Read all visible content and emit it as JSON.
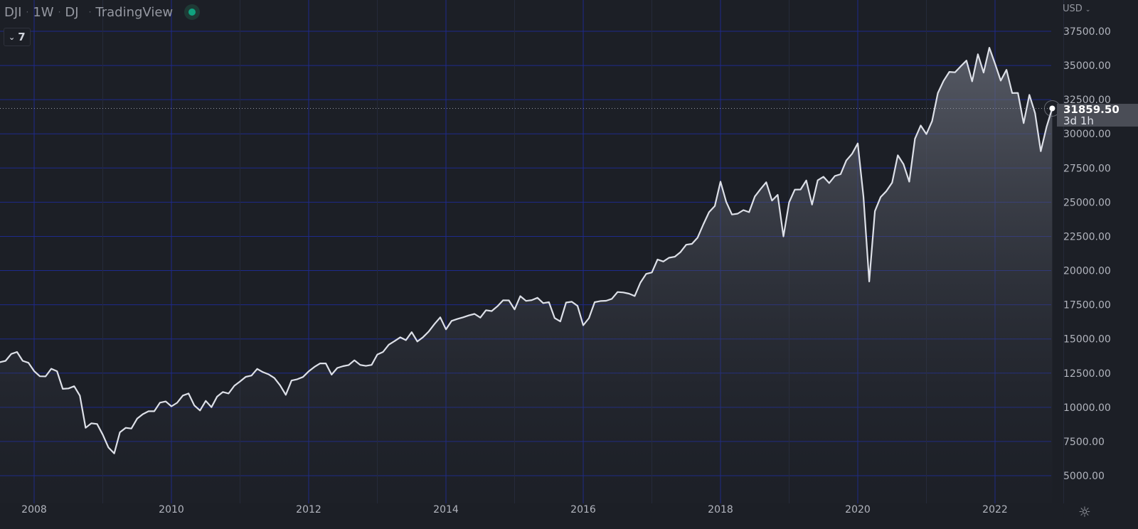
{
  "header": {
    "symbol": "DJI",
    "interval": "1W",
    "exchange": "DJ",
    "source": "TradingView",
    "status_color": "#10a37f"
  },
  "indicators_toggle": {
    "count": "7"
  },
  "price_axis": {
    "currency": "USD"
  },
  "last_price": {
    "value": "31859.50",
    "countdown": "3d 1h"
  },
  "colors": {
    "background": "#1c1f26",
    "grid": "#1e2a8c",
    "line": "#d1d4dc"
  },
  "chart_data": {
    "type": "area",
    "title": "",
    "xlabel": "",
    "ylabel": "",
    "ylim": [
      5000,
      37500
    ],
    "xlim": [
      "2007-07",
      "2022-11"
    ],
    "grid": true,
    "y_ticks": [
      "37500.00",
      "35000.00",
      "32500.00",
      "30000.00",
      "27500.00",
      "25000.00",
      "22500.00",
      "20000.00",
      "17500.00",
      "15000.00",
      "12500.00",
      "10000.00",
      "7500.00",
      "5000.00"
    ],
    "x_ticks": [
      "2008",
      "2010",
      "2012",
      "2014",
      "2016",
      "2018",
      "2020",
      "2022"
    ],
    "x": [
      "2007-07",
      "2007-08",
      "2007-09",
      "2007-10",
      "2007-11",
      "2007-12",
      "2008-01",
      "2008-02",
      "2008-03",
      "2008-04",
      "2008-05",
      "2008-06",
      "2008-07",
      "2008-08",
      "2008-09",
      "2008-10",
      "2008-11",
      "2008-12",
      "2009-01",
      "2009-02",
      "2009-03",
      "2009-04",
      "2009-05",
      "2009-06",
      "2009-07",
      "2009-08",
      "2009-09",
      "2009-10",
      "2009-11",
      "2009-12",
      "2010-01",
      "2010-02",
      "2010-03",
      "2010-04",
      "2010-05",
      "2010-06",
      "2010-07",
      "2010-08",
      "2010-09",
      "2010-10",
      "2010-11",
      "2010-12",
      "2011-01",
      "2011-02",
      "2011-03",
      "2011-04",
      "2011-05",
      "2011-06",
      "2011-07",
      "2011-08",
      "2011-09",
      "2011-10",
      "2011-11",
      "2011-12",
      "2012-01",
      "2012-02",
      "2012-03",
      "2012-04",
      "2012-05",
      "2012-06",
      "2012-07",
      "2012-08",
      "2012-09",
      "2012-10",
      "2012-11",
      "2012-12",
      "2013-01",
      "2013-02",
      "2013-03",
      "2013-04",
      "2013-05",
      "2013-06",
      "2013-07",
      "2013-08",
      "2013-09",
      "2013-10",
      "2013-11",
      "2013-12",
      "2014-01",
      "2014-02",
      "2014-03",
      "2014-04",
      "2014-05",
      "2014-06",
      "2014-07",
      "2014-08",
      "2014-09",
      "2014-10",
      "2014-11",
      "2014-12",
      "2015-01",
      "2015-02",
      "2015-03",
      "2015-04",
      "2015-05",
      "2015-06",
      "2015-07",
      "2015-08",
      "2015-09",
      "2015-10",
      "2015-11",
      "2015-12",
      "2016-01",
      "2016-02",
      "2016-03",
      "2016-04",
      "2016-05",
      "2016-06",
      "2016-07",
      "2016-08",
      "2016-09",
      "2016-10",
      "2016-11",
      "2016-12",
      "2017-01",
      "2017-02",
      "2017-03",
      "2017-04",
      "2017-05",
      "2017-06",
      "2017-07",
      "2017-08",
      "2017-09",
      "2017-10",
      "2017-11",
      "2017-12",
      "2018-01",
      "2018-02",
      "2018-03",
      "2018-04",
      "2018-05",
      "2018-06",
      "2018-07",
      "2018-08",
      "2018-09",
      "2018-10",
      "2018-11",
      "2018-12",
      "2019-01",
      "2019-02",
      "2019-03",
      "2019-04",
      "2019-05",
      "2019-06",
      "2019-07",
      "2019-08",
      "2019-09",
      "2019-10",
      "2019-11",
      "2019-12",
      "2020-01",
      "2020-02",
      "2020-03",
      "2020-04",
      "2020-05",
      "2020-06",
      "2020-07",
      "2020-08",
      "2020-09",
      "2020-10",
      "2020-11",
      "2020-12",
      "2021-01",
      "2021-02",
      "2021-03",
      "2021-04",
      "2021-05",
      "2021-06",
      "2021-07",
      "2021-08",
      "2021-09",
      "2021-10",
      "2021-11",
      "2021-12",
      "2022-01",
      "2022-02",
      "2022-03",
      "2022-04",
      "2022-05",
      "2022-06",
      "2022-07",
      "2022-08",
      "2022-09",
      "2022-10",
      "2022-11"
    ],
    "series": [
      {
        "values": [
          13300,
          13400,
          13900,
          14050,
          13400,
          13260,
          12650,
          12270,
          12260,
          12820,
          12640,
          11350,
          11380,
          11540,
          10850,
          8500,
          8830,
          8780,
          8000,
          7060,
          6630,
          8170,
          8500,
          8450,
          9170,
          9500,
          9710,
          9710,
          10340,
          10430,
          10070,
          10330,
          10860,
          11010,
          10140,
          9770,
          10470,
          10010,
          10790,
          11120,
          11010,
          11580,
          11890,
          12230,
          12320,
          12810,
          12570,
          12410,
          12140,
          11610,
          10910,
          11960,
          12050,
          12220,
          12630,
          12950,
          13210,
          13210,
          12390,
          12880,
          13010,
          13090,
          13440,
          13100,
          13030,
          13100,
          13860,
          14050,
          14580,
          14840,
          15120,
          14910,
          15500,
          14810,
          15130,
          15550,
          16090,
          16580,
          15700,
          16320,
          16460,
          16580,
          16720,
          16830,
          16560,
          17100,
          17040,
          17390,
          17830,
          17820,
          17160,
          18130,
          17780,
          17840,
          18010,
          17620,
          17690,
          16530,
          16280,
          17660,
          17720,
          17420,
          16000,
          16520,
          17690,
          17770,
          17790,
          17930,
          18430,
          18400,
          18310,
          18140,
          19120,
          19760,
          19860,
          20810,
          20660,
          20940,
          21010,
          21350,
          21890,
          21950,
          22410,
          23380,
          24270,
          24720,
          26500,
          25030,
          24100,
          24160,
          24420,
          24270,
          25420,
          25960,
          26460,
          25120,
          25540,
          22500,
          25000,
          25920,
          25930,
          26590,
          24820,
          26600,
          26860,
          26400,
          26920,
          27050,
          28050,
          28540,
          29300,
          25410,
          19200,
          24350,
          25380,
          25810,
          26430,
          28430,
          27780,
          26500,
          29640,
          30610,
          29980,
          30930,
          32980,
          33870,
          34530,
          34500,
          34940,
          35360,
          33840,
          35820,
          34480,
          36300,
          35130,
          33890,
          34680,
          32980,
          32990,
          30780,
          32850,
          31510,
          28730,
          30500,
          31859.5
        ]
      }
    ]
  }
}
